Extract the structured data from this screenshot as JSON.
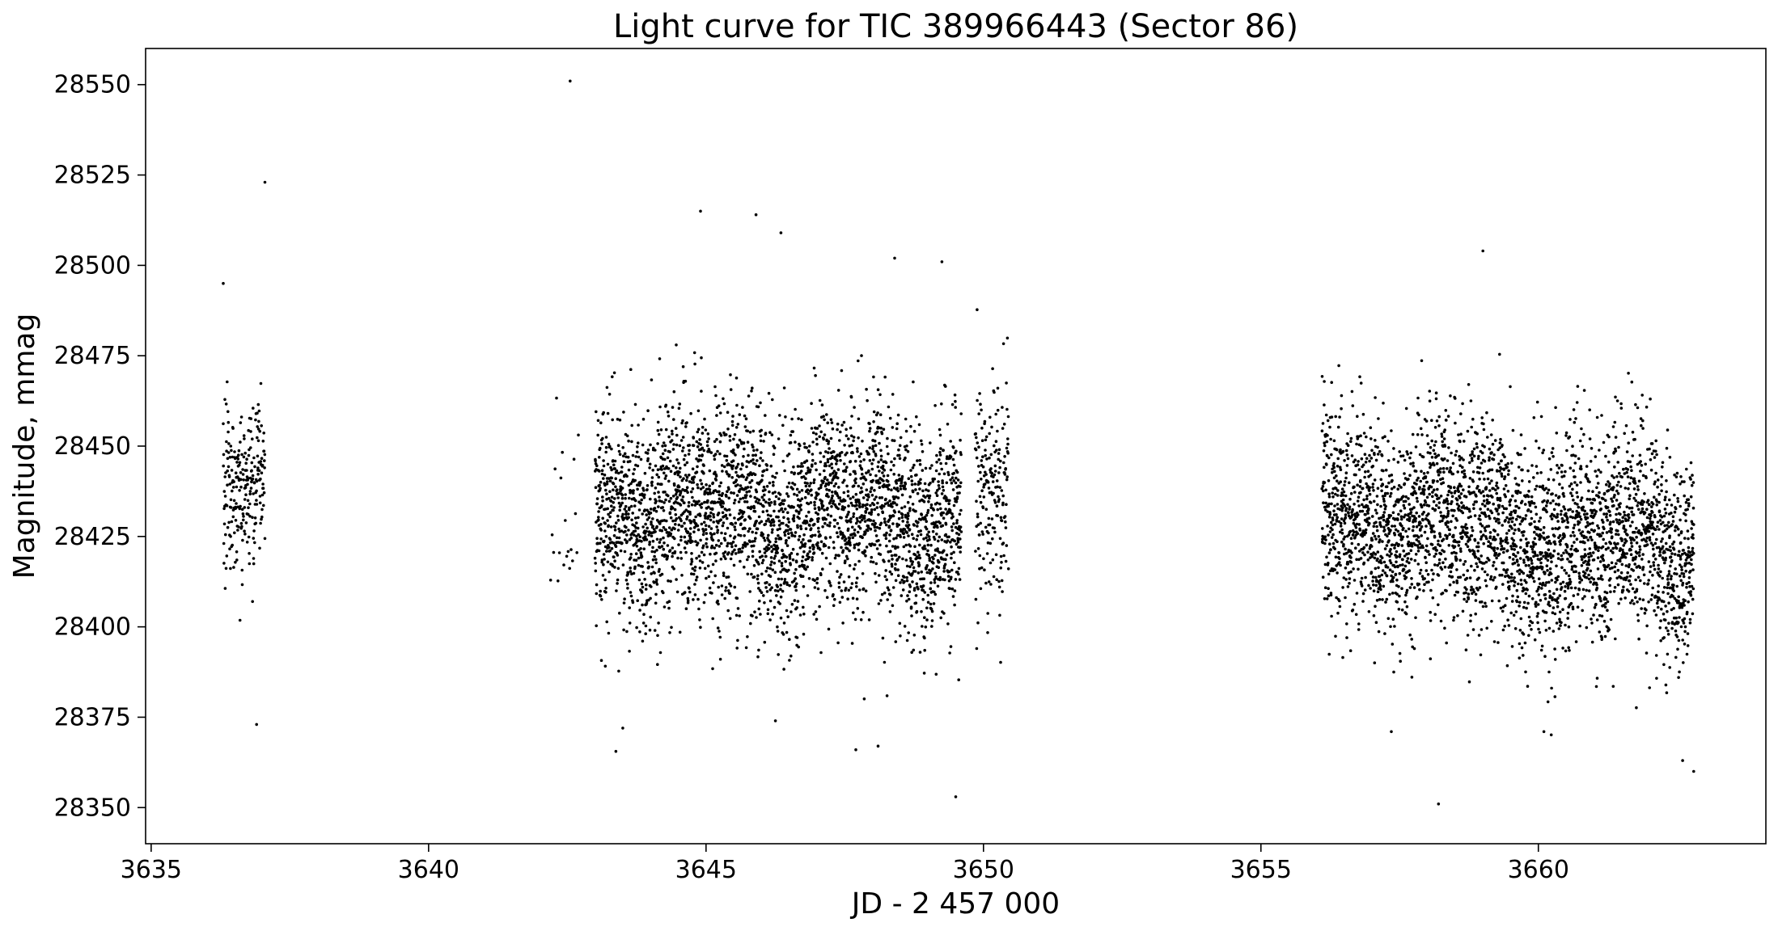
{
  "chart_data": {
    "type": "scatter",
    "title": "Light curve for TIC 389966443 (Sector 86)",
    "xlabel": "JD - 2 457 000",
    "ylabel": "Magnitude, mmag",
    "xlim": [
      3634.9,
      3664.1
    ],
    "ylim": [
      28340,
      28560
    ],
    "y_inverted": false,
    "grid": false,
    "legend": "none",
    "marker_color": "#000000",
    "x_ticks": [
      3635,
      3640,
      3645,
      3650,
      3655,
      3660
    ],
    "x_tick_labels": [
      "3635",
      "3640",
      "3645",
      "3650",
      "3655",
      "3660"
    ],
    "y_ticks": [
      28350,
      28375,
      28400,
      28425,
      28450,
      28475,
      28500,
      28525,
      28550
    ],
    "y_tick_labels": [
      "28350",
      "28375",
      "28400",
      "28425",
      "28450",
      "28475",
      "28500",
      "28525",
      "28550"
    ],
    "series": [
      {
        "segments": [
          {
            "x_start": 3636.3,
            "x_end": 3637.05,
            "center": 28437,
            "center_end": 28437,
            "spread": 14,
            "density": 320
          },
          {
            "x_start": 3642.2,
            "x_end": 3642.7,
            "center": 28425,
            "center_end": 28425,
            "spread": 14,
            "density": 40
          },
          {
            "x_start": 3643.0,
            "x_end": 3649.6,
            "center": 28432,
            "center_end": 28430,
            "spread": 16,
            "density": 480
          },
          {
            "x_start": 3649.85,
            "x_end": 3650.45,
            "center": 28438,
            "center_end": 28435,
            "spread": 17,
            "density": 320
          },
          {
            "x_start": 3656.1,
            "x_end": 3662.8,
            "center": 28432,
            "center_end": 28422,
            "spread": 16,
            "density": 480
          }
        ],
        "outliers": [
          {
            "x": 3642.55,
            "y": 28551
          },
          {
            "x": 3637.05,
            "y": 28523
          },
          {
            "x": 3644.9,
            "y": 28515
          },
          {
            "x": 3645.9,
            "y": 28514
          },
          {
            "x": 3646.35,
            "y": 28509
          },
          {
            "x": 3659.0,
            "y": 28504
          },
          {
            "x": 3648.4,
            "y": 28502
          },
          {
            "x": 3636.3,
            "y": 28495
          },
          {
            "x": 3649.25,
            "y": 28501
          },
          {
            "x": 3636.9,
            "y": 28373
          },
          {
            "x": 3643.5,
            "y": 28372
          },
          {
            "x": 3646.25,
            "y": 28374
          },
          {
            "x": 3647.7,
            "y": 28366
          },
          {
            "x": 3648.1,
            "y": 28367
          },
          {
            "x": 3649.5,
            "y": 28353
          },
          {
            "x": 3658.2,
            "y": 28351
          },
          {
            "x": 3657.35,
            "y": 28371
          },
          {
            "x": 3660.1,
            "y": 28371
          },
          {
            "x": 3662.8,
            "y": 28360
          },
          {
            "x": 3662.6,
            "y": 28363
          }
        ]
      }
    ]
  }
}
